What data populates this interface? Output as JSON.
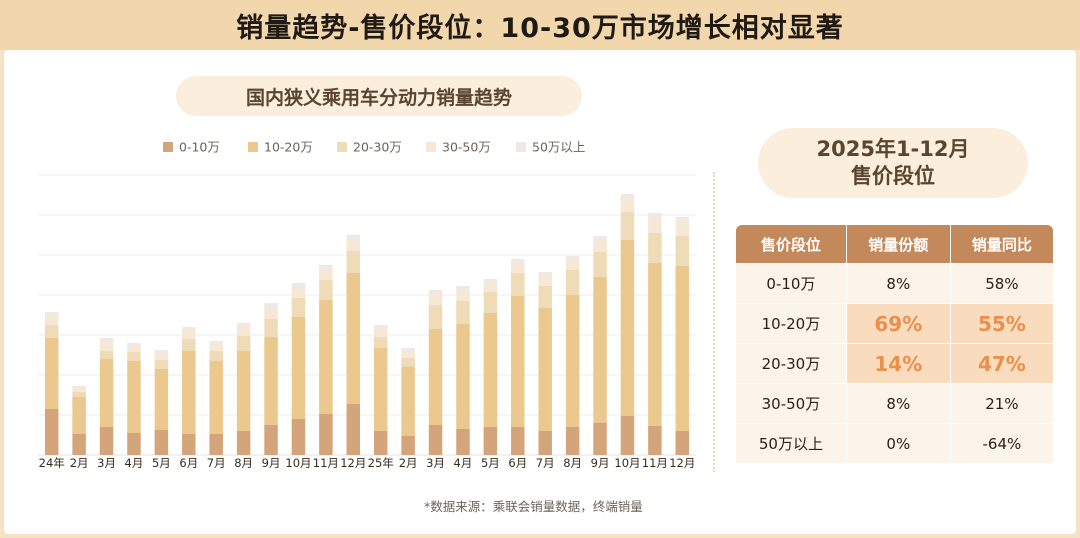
{
  "header": {
    "title": "销量趋势-售价段位：10-30万市场增长相对显著"
  },
  "chart_data": {
    "type": "bar",
    "stacked": true,
    "title": "国内狭义乘用车分动力销量趋势",
    "legend_position": "top",
    "grid": "horizontal",
    "categories": [
      "24年",
      "2月",
      "3月",
      "4月",
      "5月",
      "6月",
      "7月",
      "8月",
      "9月",
      "10月",
      "11月",
      "12月",
      "25年",
      "2月",
      "3月",
      "4月",
      "5月",
      "6月",
      "7月",
      "8月",
      "9月",
      "10月",
      "11月",
      "12月"
    ],
    "series": [
      {
        "name": "0-10万",
        "color": "#d4a47a",
        "values": [
          46,
          21,
          28,
          22,
          25,
          21,
          21,
          24,
          30,
          36,
          41,
          51,
          24,
          19,
          30,
          26,
          28,
          28,
          24,
          28,
          32,
          39,
          29,
          24
        ]
      },
      {
        "name": "10-20万",
        "color": "#ebc88e",
        "values": [
          71,
          37,
          68,
          72,
          61,
          83,
          73,
          80,
          88,
          102,
          114,
          131,
          83,
          69,
          96,
          105,
          114,
          131,
          123,
          132,
          146,
          176,
          163,
          165
        ]
      },
      {
        "name": "20-30万",
        "color": "#efdbb7",
        "values": [
          13,
          5,
          8,
          9,
          9,
          12,
          10,
          15,
          18,
          19,
          20,
          22,
          11,
          9,
          24,
          23,
          21,
          23,
          22,
          25,
          25,
          28,
          30,
          30
        ]
      },
      {
        "name": "30-50万",
        "color": "#f5e8d6",
        "values": [
          10,
          4,
          10,
          6,
          7,
          9,
          7,
          10,
          12,
          11,
          11,
          12,
          9,
          7,
          11,
          11,
          9,
          10,
          10,
          10,
          12,
          14,
          15,
          14
        ]
      },
      {
        "name": "50万以上",
        "color": "#f0e8e4",
        "values": [
          3,
          2,
          3,
          3,
          3,
          3,
          3,
          3,
          4,
          4,
          4,
          4,
          3,
          3,
          4,
          4,
          4,
          4,
          4,
          4,
          4,
          4,
          5,
          5
        ]
      }
    ]
  },
  "right": {
    "title_line1": "2025年1-12月",
    "title_line2": "售价段位",
    "table": {
      "headers": [
        "售价段位",
        "销量份额",
        "销量同比"
      ],
      "rows": [
        [
          "0-10万",
          "8%",
          "58%"
        ],
        [
          "10-20万",
          "69%",
          "55%"
        ],
        [
          "20-30万",
          "14%",
          "47%"
        ],
        [
          "30-50万",
          "8%",
          "21%"
        ],
        [
          "50万以上",
          "0%",
          "-64%"
        ]
      ]
    }
  },
  "source": "*数据来源：乘联会销量数据，终端销量"
}
